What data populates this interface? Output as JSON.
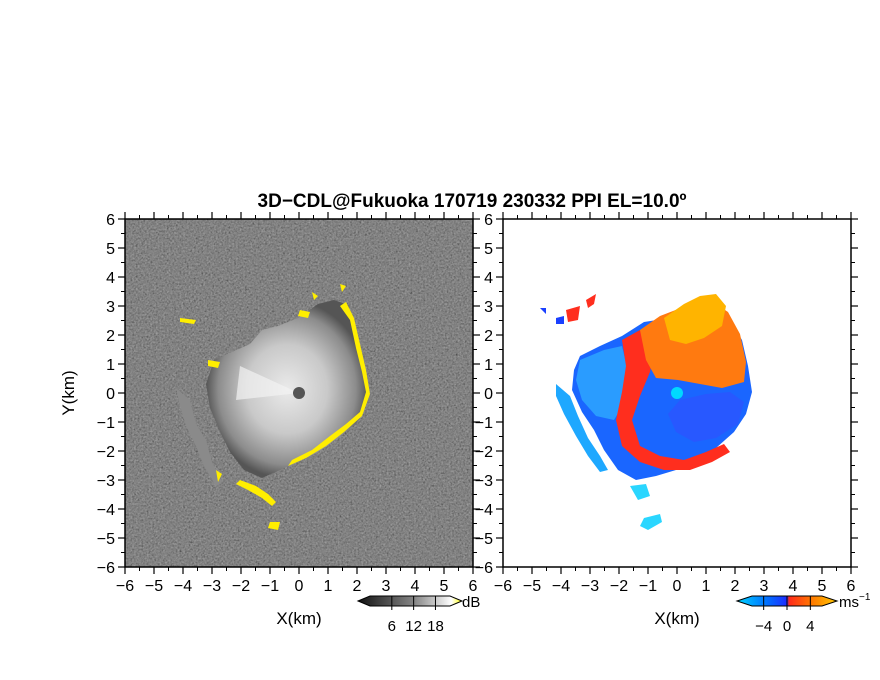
{
  "title": "3D−CDL@Fukuoka 170719 230332 PPI EL=10.0º",
  "chart_data": [
    {
      "type": "heatmap",
      "panel": "left",
      "quantity": "backscatter intensity",
      "xlabel": "X(km)",
      "ylabel": "Y(km)",
      "xlim": [
        -6,
        6
      ],
      "ylim": [
        -6,
        6
      ],
      "x_ticks": [
        "−6",
        "−5",
        "−4",
        "−3",
        "−2",
        "−1",
        "0",
        "1",
        "2",
        "3",
        "4",
        "5",
        "6"
      ],
      "y_ticks": [
        "6",
        "5",
        "4",
        "3",
        "2",
        "1",
        "0",
        "−1",
        "−2",
        "−3",
        "−4",
        "−5",
        "−6"
      ],
      "radar_center": [
        0,
        0
      ],
      "colorbar": {
        "unit": "dB",
        "ticks": [
          "6",
          "12",
          "18"
        ],
        "tick_values": [
          6,
          12,
          18
        ],
        "range": [
          0,
          22
        ],
        "colors": [
          "#111111",
          "#ffffff",
          "#ffff00"
        ]
      },
      "features": {
        "bright_echo_radius_km": 2.3,
        "yellow_rim_color": "#ffee00",
        "background": "noise (dark gray)"
      }
    },
    {
      "type": "heatmap",
      "panel": "right",
      "quantity": "radial velocity",
      "xlabel": "X(km)",
      "ylabel": "",
      "xlim": [
        -6,
        6
      ],
      "ylim": [
        -6,
        6
      ],
      "x_ticks": [
        "−6",
        "−5",
        "−4",
        "−3",
        "−2",
        "−1",
        "0",
        "1",
        "2",
        "3",
        "4",
        "5",
        "6"
      ],
      "y_ticks": [
        "6",
        "5",
        "4",
        "3",
        "2",
        "1",
        "0",
        "−1",
        "−2",
        "−3",
        "−4",
        "−5",
        "−6"
      ],
      "radar_center": [
        0,
        0
      ],
      "colorbar": {
        "unit": "ms−1",
        "ticks": [
          "−4",
          "0",
          "4"
        ],
        "tick_values": [
          -4,
          0,
          4
        ],
        "range": [
          -6,
          6
        ],
        "colors": [
          "#00ccff",
          "#0066ff",
          "#1a2cff",
          "#ff2a1a",
          "#ff7a00",
          "#ffc000"
        ]
      },
      "features": {
        "approaching_region": "south / west (blue)",
        "receding_region": "north / east (red-orange-yellow)"
      }
    }
  ]
}
